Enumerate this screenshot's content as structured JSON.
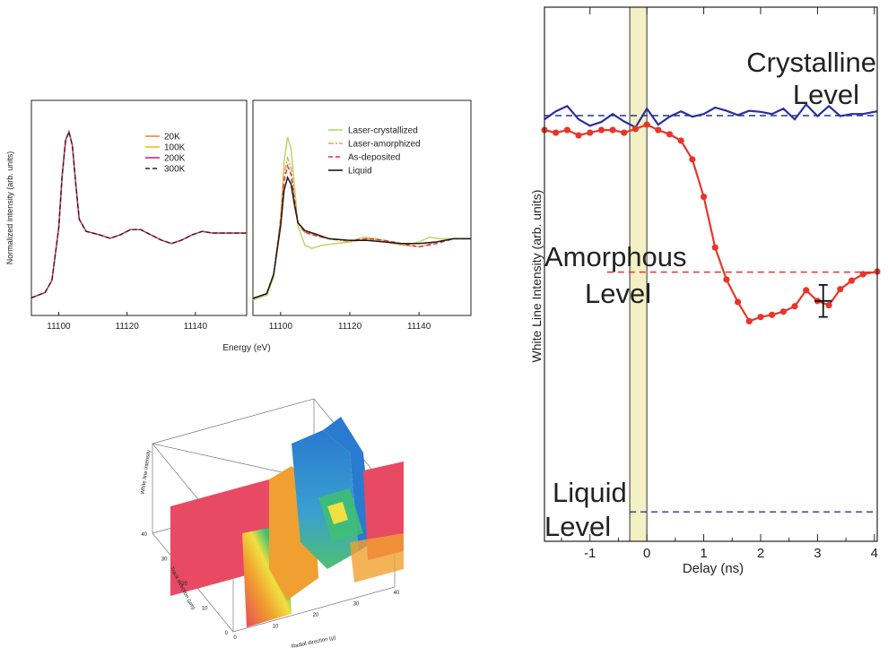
{
  "figure": {
    "colors": {
      "axis": "#222222",
      "red": "#e8352a",
      "blue": "#2b2f9c",
      "band": "#f3f0c4"
    }
  },
  "chart_data": [
    {
      "id": "panel_a",
      "type": "line",
      "ylabel": "Normalized intensity (arb. units)",
      "xlim": [
        11092,
        11155
      ],
      "xticks": [
        11100,
        11120,
        11140
      ],
      "legend_placement": "top-right",
      "series": [
        {
          "name": "20K",
          "color": "#f08a30",
          "dash": "solid"
        },
        {
          "name": "100K",
          "color": "#e8c21a",
          "dash": "solid"
        },
        {
          "name": "200K",
          "color": "#e0207a",
          "dash": "solid"
        },
        {
          "name": "300K",
          "color": "#222222",
          "dash": "dash"
        }
      ],
      "x": [
        11092,
        11096,
        11098,
        11100,
        11101,
        11102,
        11103,
        11104,
        11105,
        11106,
        11108,
        11110,
        11112,
        11115,
        11118,
        11121,
        11124,
        11127,
        11130,
        11133,
        11136,
        11139,
        11142,
        11145,
        11148,
        11151,
        11155
      ],
      "y": [
        0.05,
        0.08,
        0.15,
        0.45,
        0.75,
        0.95,
        1.0,
        0.92,
        0.7,
        0.5,
        0.43,
        0.42,
        0.41,
        0.39,
        0.41,
        0.44,
        0.44,
        0.41,
        0.38,
        0.36,
        0.38,
        0.41,
        0.43,
        0.42,
        0.42,
        0.42,
        0.42
      ]
    },
    {
      "id": "panel_b",
      "type": "line",
      "xlabel": "Energy (eV)",
      "xlim": [
        11092,
        11155
      ],
      "xticks": [
        11100,
        11120,
        11140
      ],
      "legend_placement": "top-right",
      "series": [
        {
          "name": "Laser-crystallized",
          "color": "#b8d86a",
          "dash": "solid",
          "x": [
            11092,
            11096,
            11098,
            11100,
            11101,
            11102,
            11103,
            11104,
            11105,
            11107,
            11109,
            11112,
            11116,
            11120,
            11124,
            11128,
            11132,
            11136,
            11140,
            11143,
            11146,
            11150,
            11155
          ],
          "y": [
            0.04,
            0.07,
            0.18,
            0.55,
            0.9,
            1.05,
            0.98,
            0.75,
            0.5,
            0.38,
            0.36,
            0.38,
            0.39,
            0.4,
            0.43,
            0.42,
            0.39,
            0.38,
            0.4,
            0.43,
            0.42,
            0.42,
            0.42
          ]
        },
        {
          "name": "Laser-amorphized",
          "color": "#f0a040",
          "dash": "dashdot",
          "x": [
            11092,
            11096,
            11098,
            11100,
            11101,
            11102,
            11103,
            11104,
            11105,
            11107,
            11110,
            11114,
            11120,
            11125,
            11130,
            11135,
            11140,
            11145,
            11150,
            11155
          ],
          "y": [
            0.05,
            0.08,
            0.2,
            0.55,
            0.82,
            0.92,
            0.86,
            0.68,
            0.52,
            0.46,
            0.44,
            0.42,
            0.4,
            0.42,
            0.41,
            0.38,
            0.37,
            0.4,
            0.42,
            0.42
          ]
        },
        {
          "name": "As-deposited",
          "color": "#e0303a",
          "dash": "dash",
          "x": [
            11092,
            11096,
            11098,
            11100,
            11101,
            11102,
            11103,
            11104,
            11105,
            11107,
            11110,
            11114,
            11120,
            11125,
            11130,
            11135,
            11140,
            11145,
            11150,
            11155
          ],
          "y": [
            0.05,
            0.08,
            0.2,
            0.52,
            0.78,
            0.87,
            0.82,
            0.66,
            0.52,
            0.46,
            0.44,
            0.42,
            0.41,
            0.42,
            0.41,
            0.39,
            0.37,
            0.39,
            0.42,
            0.42
          ]
        },
        {
          "name": "Liquid",
          "color": "#1a1a1a",
          "dash": "solid",
          "x": [
            11092,
            11096,
            11098,
            11100,
            11101,
            11102,
            11103,
            11104,
            11105,
            11107,
            11110,
            11114,
            11120,
            11125,
            11130,
            11135,
            11140,
            11145,
            11150,
            11155
          ],
          "y": [
            0.05,
            0.08,
            0.2,
            0.5,
            0.72,
            0.8,
            0.76,
            0.63,
            0.52,
            0.47,
            0.45,
            0.42,
            0.41,
            0.41,
            0.4,
            0.39,
            0.39,
            0.4,
            0.42,
            0.42
          ]
        }
      ]
    },
    {
      "id": "panel_c",
      "type": "surface3d",
      "zlabel": "White line intensity",
      "ylabel": "Track direction (µm)",
      "xlabel": "Radial direction (µ)",
      "xticks": [
        0,
        10,
        20,
        30,
        40
      ],
      "yticks": [
        0,
        10,
        20,
        30,
        40
      ],
      "colors": [
        "#e8405a",
        "#f0a030",
        "#f0e040",
        "#40c070",
        "#2a8ad0"
      ]
    },
    {
      "id": "panel_d",
      "type": "line",
      "xlabel": "Delay (ns)",
      "ylabel": "White Line Intensity (arb. units)",
      "xlim": [
        -1.8,
        4.05
      ],
      "ylim": [
        0,
        1
      ],
      "xticks": [
        -1,
        0,
        1,
        2,
        3,
        4
      ],
      "annotations": [
        {
          "text": "Crystalline",
          "line": 1
        },
        {
          "text": "Level",
          "line": 2
        },
        {
          "text": "Amorphous",
          "line": 3
        },
        {
          "text": "Level",
          "line": 4
        },
        {
          "text": "Liquid",
          "line": 5
        },
        {
          "text": "Level",
          "line": 6
        }
      ],
      "levels": {
        "crystalline": 0.797,
        "amorphous": 0.504,
        "liquid": 0.055
      },
      "band": [
        -0.3,
        0.0
      ],
      "error_bar": {
        "x": 3.1,
        "y": 0.45,
        "xerr": 0.15,
        "yerr": 0.03
      },
      "series": [
        {
          "name": "crystalline_trace",
          "color": "#2b2f9c",
          "x": [
            -1.8,
            -1.6,
            -1.4,
            -1.2,
            -1.0,
            -0.8,
            -0.6,
            -0.4,
            -0.2,
            0.0,
            0.2,
            0.4,
            0.6,
            0.8,
            1.0,
            1.2,
            1.4,
            1.6,
            1.8,
            2.0,
            2.2,
            2.4,
            2.6,
            2.8,
            3.0,
            3.2,
            3.4,
            3.6,
            3.8,
            4.05
          ],
          "y": [
            0.79,
            0.805,
            0.815,
            0.79,
            0.778,
            0.785,
            0.8,
            0.786,
            0.775,
            0.81,
            0.78,
            0.795,
            0.805,
            0.795,
            0.8,
            0.812,
            0.806,
            0.798,
            0.806,
            0.804,
            0.8,
            0.81,
            0.79,
            0.818,
            0.796,
            0.815,
            0.796,
            0.8,
            0.8,
            0.805
          ]
        },
        {
          "name": "measured",
          "color": "#e8352a",
          "x": [
            -1.8,
            -1.6,
            -1.4,
            -1.2,
            -1.0,
            -0.8,
            -0.6,
            -0.4,
            -0.2,
            0.0,
            0.2,
            0.4,
            0.6,
            0.8,
            1.0,
            1.2,
            1.4,
            1.6,
            1.8,
            2.0,
            2.2,
            2.4,
            2.6,
            2.8,
            3.0,
            3.2,
            3.4,
            3.6,
            3.8,
            4.05
          ],
          "y": [
            0.77,
            0.765,
            0.77,
            0.76,
            0.765,
            0.77,
            0.77,
            0.765,
            0.772,
            0.78,
            0.77,
            0.762,
            0.75,
            0.715,
            0.645,
            0.55,
            0.49,
            0.448,
            0.412,
            0.42,
            0.424,
            0.43,
            0.44,
            0.47,
            0.45,
            0.442,
            0.472,
            0.488,
            0.5,
            0.505
          ]
        }
      ]
    }
  ]
}
